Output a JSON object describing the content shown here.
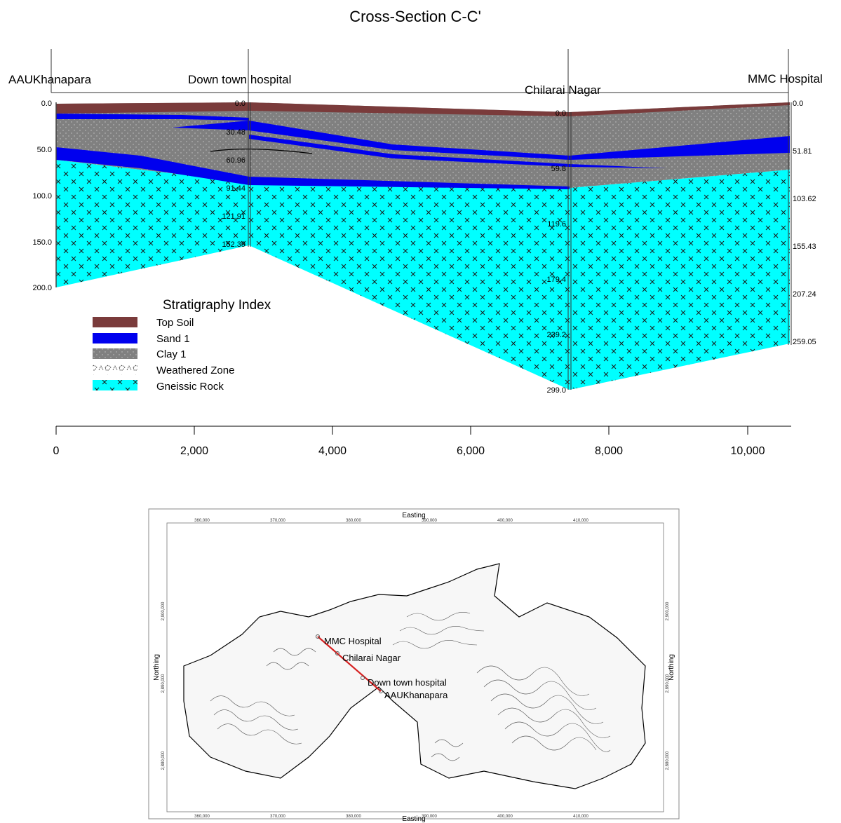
{
  "title": "Cross-Section C-C'",
  "wells": [
    {
      "id": "aau",
      "label": "AAUKhanapara",
      "distance": 0,
      "depth_labels": []
    },
    {
      "id": "dth",
      "label": "Down town hospital",
      "distance": 2800,
      "depth_labels": [
        "0.0",
        "30.48",
        "60.96",
        "91.44",
        "121.91",
        "152.39"
      ]
    },
    {
      "id": "chn",
      "label": "Chilarai Nagar",
      "distance": 7450,
      "depth_labels": [
        "0.0",
        "59.8",
        "119.6",
        "179.4",
        "239.2",
        "299.0"
      ]
    },
    {
      "id": "mmc",
      "label": "MMC Hospital",
      "distance": 10600,
      "depth_labels": [
        "0.0",
        "51.81",
        "103.62",
        "155.43",
        "207.24",
        "259.05"
      ]
    }
  ],
  "left_depth_axis": {
    "ticks": [
      "0.0",
      "50.0",
      "100.0",
      "150.0",
      "200.0"
    ]
  },
  "bottom_axis": {
    "ticks": [
      "0",
      "2,000",
      "4,000",
      "6,000",
      "8,000",
      "10,000"
    ]
  },
  "legend": {
    "title": "Stratigraphy Index",
    "items": [
      {
        "label": "Top Soil",
        "color": "#7a3b3b",
        "pattern": "solid"
      },
      {
        "label": "Sand 1",
        "color": "#0000ee",
        "pattern": "solid"
      },
      {
        "label": "Clay 1",
        "color": "#808080",
        "pattern": "dots"
      },
      {
        "label": "Weathered Zone",
        "color": "#ffffff",
        "pattern": "weathered"
      },
      {
        "label": "Gneissic Rock",
        "color": "#00ffff",
        "pattern": "cross"
      }
    ]
  },
  "map": {
    "top_axis_title": "Easting",
    "bottom_axis_title": "Easting",
    "left_axis_title": "Northing",
    "right_axis_title": "Northing",
    "easting_ticks": [
      "360,000",
      "370,000",
      "380,000",
      "390,000",
      "400,000",
      "410,000"
    ],
    "northing_ticks": [
      "2,900,000",
      "2,890,000",
      "2,880,000"
    ],
    "stations": [
      "MMC Hospital",
      "Chilarai Nagar",
      "Down town hospital",
      "AAUKhanapara"
    ],
    "section_line_color": "#d62020"
  }
}
